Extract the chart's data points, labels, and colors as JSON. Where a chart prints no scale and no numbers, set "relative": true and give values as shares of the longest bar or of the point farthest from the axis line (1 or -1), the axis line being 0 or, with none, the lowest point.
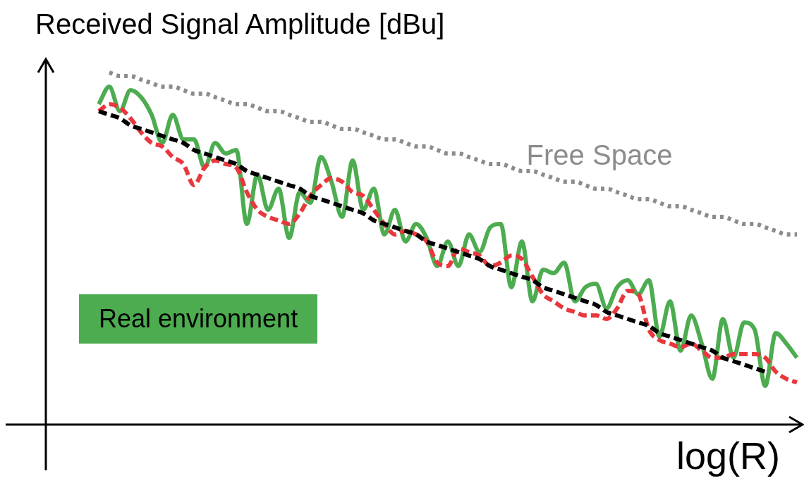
{
  "chart_data": {
    "type": "line",
    "ylabel": "Received Signal Amplitude [dBu]",
    "xlabel": "log(R)",
    "relative": true,
    "marker": "none",
    "annotations": [
      "Real environment"
    ],
    "categories": [
      null,
      null,
      null,
      null,
      null,
      null,
      null,
      null,
      null,
      null,
      null,
      null,
      null,
      null,
      null,
      null,
      null,
      null,
      null,
      null,
      null,
      null,
      null,
      null,
      null,
      null,
      null,
      null,
      null,
      null,
      null,
      null,
      null,
      null,
      null,
      null,
      null,
      null,
      null,
      null,
      null,
      null,
      null,
      null,
      null,
      null,
      null,
      null,
      null,
      null,
      null,
      null,
      null,
      null,
      null,
      null,
      null,
      null,
      null,
      null,
      null,
      null,
      null,
      null,
      null,
      null,
      null,
      null,
      null,
      null,
      null,
      null
    ],
    "series": [
      {
        "color": "#4dac50",
        "line_style": "solid",
        "values": [
          null,
          null,
          null,
          null,
          null,
          0.91,
          0.96,
          0.89,
          0.95,
          0.93,
          0.88,
          0.8,
          0.88,
          0.81,
          0.81,
          0.73,
          0.8,
          0.77,
          0.78,
          0.57,
          0.71,
          0.61,
          0.67,
          0.53,
          0.66,
          0.63,
          0.76,
          0.69,
          0.59,
          0.75,
          0.61,
          0.67,
          0.54,
          0.61,
          0.52,
          0.57,
          0.53,
          0.45,
          0.52,
          0.45,
          0.54,
          0.49,
          0.56,
          0.57,
          0.39,
          0.52,
          0.35,
          0.44,
          0.43,
          0.46,
          0.35,
          0.39,
          0.4,
          0.33,
          0.39,
          0.41,
          0.37,
          0.41,
          0.25,
          0.35,
          0.21,
          0.31,
          0.23,
          0.13,
          0.3,
          0.19,
          0.29,
          0.27,
          0.11,
          0.26,
          0.23,
          0.19
        ]
      },
      {
        "color": "#e8383d",
        "line_style": "dashed",
        "values": [
          null,
          null,
          null,
          null,
          null,
          0.89,
          0.91,
          0.9,
          0.87,
          0.83,
          0.8,
          0.79,
          0.76,
          0.74,
          0.68,
          0.73,
          0.75,
          0.74,
          0.73,
          0.66,
          0.61,
          0.59,
          0.58,
          0.57,
          0.6,
          0.65,
          0.68,
          0.7,
          0.69,
          0.66,
          0.65,
          0.61,
          0.57,
          0.54,
          0.55,
          0.54,
          0.52,
          0.46,
          0.45,
          0.5,
          0.49,
          0.48,
          0.45,
          0.46,
          0.48,
          0.47,
          0.42,
          0.37,
          0.35,
          0.33,
          0.32,
          0.31,
          0.31,
          0.3,
          0.33,
          0.38,
          0.37,
          0.27,
          0.24,
          0.23,
          0.22,
          0.23,
          0.21,
          0.19,
          0.19,
          0.2,
          0.2,
          0.2,
          0.19,
          0.15,
          0.13,
          0.12
        ]
      },
      {
        "color": "#000000",
        "line_style": "dashed",
        "values": [
          null,
          null,
          null,
          null,
          null,
          0.89,
          0.88,
          0.87,
          0.85,
          0.84,
          0.83,
          0.82,
          0.81,
          0.8,
          0.78,
          0.77,
          0.76,
          0.75,
          0.74,
          0.72,
          0.71,
          0.7,
          0.69,
          0.68,
          0.67,
          0.65,
          0.64,
          0.63,
          0.62,
          0.61,
          0.6,
          0.58,
          0.57,
          0.56,
          0.55,
          0.54,
          0.52,
          0.51,
          0.5,
          0.49,
          0.48,
          0.47,
          0.45,
          0.44,
          0.43,
          0.42,
          0.41,
          0.39,
          0.38,
          0.37,
          0.36,
          0.35,
          0.34,
          0.32,
          0.31,
          0.3,
          0.29,
          0.28,
          0.26,
          0.25,
          0.24,
          0.23,
          0.22,
          0.21,
          0.19,
          0.18,
          0.17,
          0.16,
          0.15,
          null,
          null,
          null
        ]
      },
      {
        "name": "Free Space",
        "color": "#8c8c8c",
        "line_style": "dotted",
        "values": [
          null,
          null,
          null,
          null,
          null,
          null,
          1.0,
          0.99,
          0.99,
          0.98,
          0.97,
          0.96,
          0.96,
          0.95,
          0.94,
          0.94,
          0.93,
          0.92,
          0.91,
          0.91,
          0.9,
          0.89,
          0.89,
          0.88,
          0.87,
          0.86,
          0.86,
          0.85,
          0.84,
          0.84,
          0.83,
          0.82,
          0.81,
          0.81,
          0.8,
          0.79,
          0.79,
          0.78,
          0.77,
          0.77,
          0.76,
          0.75,
          0.74,
          0.74,
          0.73,
          0.72,
          0.72,
          0.71,
          0.7,
          0.69,
          0.69,
          0.68,
          0.67,
          0.67,
          0.66,
          0.65,
          0.64,
          0.64,
          0.63,
          0.62,
          0.62,
          0.61,
          0.6,
          0.59,
          0.59,
          0.58,
          0.57,
          0.57,
          0.56,
          0.55,
          0.54,
          0.54
        ]
      }
    ]
  }
}
